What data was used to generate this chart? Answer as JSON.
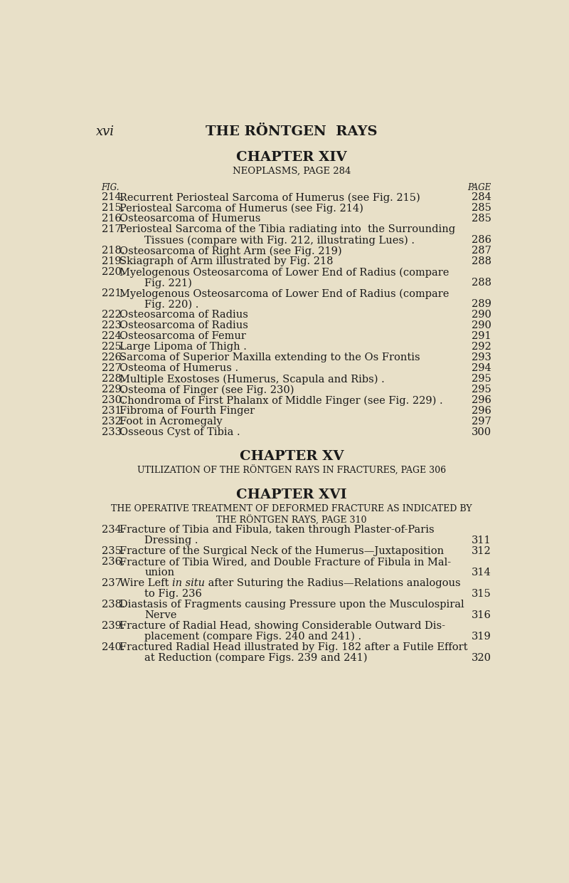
{
  "background_color": "#e8e0c8",
  "page_header_left": "xvi",
  "page_header_center": "THE RÖNTGEN  RAYS",
  "chapter14_title": "CHAPTER XIV",
  "chapter14_subtitle": "NEOPLASMS, PAGE 284",
  "col_fig": "FIG.",
  "col_page": "PAGE",
  "entries_ch14": [
    {
      "fig": "214.",
      "text": "Recurrent Periosteal Sarcoma of Humerus (see Fig. 215)",
      "dots": true,
      "page": "284",
      "continuation": false
    },
    {
      "fig": "215.",
      "text": "Periosteal Sarcoma of Humerus (see Fig. 214)",
      "dots": true,
      "page": "285",
      "continuation": false
    },
    {
      "fig": "216.",
      "text": "Osteosarcoma of Humerus",
      "dots": true,
      "page": "285",
      "continuation": false
    },
    {
      "fig": "217.",
      "text": "Periosteal Sarcoma of the Tibia radiating into  the Surrounding",
      "dots": false,
      "page": "",
      "continuation": false
    },
    {
      "fig": "",
      "text": "Tissues (compare with Fig. 212, illustrating Lues) .",
      "dots": true,
      "page": "286",
      "continuation": true
    },
    {
      "fig": "218.",
      "text": "Osteosarcoma of Right Arm (see Fig. 219)",
      "dots": true,
      "page": "287",
      "continuation": false
    },
    {
      "fig": "219.",
      "text": "Skiagraph of Arm illustrated by Fig. 218",
      "dots": true,
      "page": "288",
      "continuation": false
    },
    {
      "fig": "220.",
      "text": "Myelogenous Osteosarcoma of Lower End of Radius (compare",
      "dots": false,
      "page": "",
      "continuation": false
    },
    {
      "fig": "",
      "text": "Fig. 221)",
      "dots": true,
      "page": "288",
      "continuation": true
    },
    {
      "fig": "221.",
      "text": "Myelogenous Osteosarcoma of Lower End of Radius (compare",
      "dots": false,
      "page": "",
      "continuation": false
    },
    {
      "fig": "",
      "text": "Fig. 220) .",
      "dots": true,
      "page": "289",
      "continuation": true
    },
    {
      "fig": "222.",
      "text": "Osteosarcoma of Radius",
      "dots": true,
      "page": "290",
      "continuation": false
    },
    {
      "fig": "223.",
      "text": "Osteosarcoma of Radius",
      "dots": true,
      "page": "290",
      "continuation": false
    },
    {
      "fig": "224.",
      "text": "Osteosarcoma of Femur",
      "dots": true,
      "page": "291",
      "continuation": false
    },
    {
      "fig": "225.",
      "text": "Large Lipoma of Thigh .",
      "dots": true,
      "page": "292",
      "continuation": false
    },
    {
      "fig": "226.",
      "text": "Sarcoma of Superior Maxilla extending to the Os Frontis",
      "dots": true,
      "page": "293",
      "continuation": false
    },
    {
      "fig": "227.",
      "text": "Osteoma of Humerus .",
      "dots": true,
      "page": "294",
      "continuation": false
    },
    {
      "fig": "228.",
      "text": "Multiple Exostoses (Humerus, Scapula and Ribs) .",
      "dots": true,
      "page": "295",
      "continuation": false
    },
    {
      "fig": "229.",
      "text": "Osteoma of Finger (see Fig. 230)",
      "dots": true,
      "page": "295",
      "continuation": false
    },
    {
      "fig": "230.",
      "text": "Chondroma of First Phalanx of Middle Finger (see Fig. 229) .",
      "dots": true,
      "page": "296",
      "continuation": false
    },
    {
      "fig": "231.",
      "text": "Fibroma of Fourth Finger",
      "dots": true,
      "page": "296",
      "continuation": false
    },
    {
      "fig": "232.",
      "text": "Foot in Acromegaly",
      "dots": true,
      "page": "297",
      "continuation": false
    },
    {
      "fig": "233.",
      "text": "Osseous Cyst of Tibia .",
      "dots": true,
      "page": "300",
      "continuation": false
    }
  ],
  "chapter15_title": "CHAPTER XV",
  "chapter15_subtitle": "UTILIZATION OF THE RÖNTGEN RAYS IN FRACTURES, PAGE 306",
  "chapter16_title": "CHAPTER XVI",
  "chapter16_subtitle_line1": "THE OPERATIVE TREATMENT OF DEFORMED FRACTURE AS INDICATED BY",
  "chapter16_subtitle_line2": "THE RÖNTGEN RAYS, PAGE 310",
  "entries_ch16": [
    {
      "fig": "234.",
      "text": "Fracture of Tibia and Fibula, taken through Plaster-of-Paris",
      "dots": false,
      "page": "",
      "continuation": false,
      "italic_part": ""
    },
    {
      "fig": "",
      "text": "Dressing .",
      "dots": true,
      "page": "311",
      "continuation": true,
      "italic_part": ""
    },
    {
      "fig": "235.",
      "text": "Fracture of the Surgical Neck of the Humerus—Juxtaposition",
      "dots": true,
      "page": "312",
      "continuation": false,
      "italic_part": ""
    },
    {
      "fig": "236.",
      "text": "Fracture of Tibia Wired, and Double Fracture of Fibula in Mal-",
      "dots": false,
      "page": "",
      "continuation": false,
      "italic_part": ""
    },
    {
      "fig": "",
      "text": "union",
      "dots": true,
      "page": "314",
      "continuation": true,
      "italic_part": ""
    },
    {
      "fig": "237.",
      "text": "Wire Left in situ after Suturing the Radius—Relations analogous",
      "dots": false,
      "page": "",
      "continuation": false,
      "italic_part": "in situ"
    },
    {
      "fig": "",
      "text": "to Fig. 236",
      "dots": true,
      "page": "315",
      "continuation": true,
      "italic_part": ""
    },
    {
      "fig": "238.",
      "text": "Diastasis of Fragments causing Pressure upon the Musculospiral",
      "dots": false,
      "page": "",
      "continuation": false,
      "italic_part": ""
    },
    {
      "fig": "",
      "text": "Nerve",
      "dots": true,
      "page": "316",
      "continuation": true,
      "italic_part": ""
    },
    {
      "fig": "239.",
      "text": "Fracture of Radial Head, showing Considerable Outward Dis-",
      "dots": false,
      "page": "",
      "continuation": false,
      "italic_part": ""
    },
    {
      "fig": "",
      "text": "placement (compare Figs. 240 and 241) .",
      "dots": true,
      "page": "319",
      "continuation": true,
      "italic_part": ""
    },
    {
      "fig": "240.",
      "text": "Fractured Radial Head illustrated by Fig. 182 after a Futile Effort",
      "dots": false,
      "page": "",
      "continuation": false,
      "italic_part": ""
    },
    {
      "fig": "",
      "text": "at Reduction (compare Figs. 239 and 241)",
      "dots": true,
      "page": "320",
      "continuation": true,
      "italic_part": ""
    }
  ],
  "text_color": "#1a1a1a",
  "font_size_header": 13,
  "font_size_chapter": 13,
  "font_size_subtitle": 9,
  "font_size_body": 10.5,
  "font_size_colheader": 8.5
}
